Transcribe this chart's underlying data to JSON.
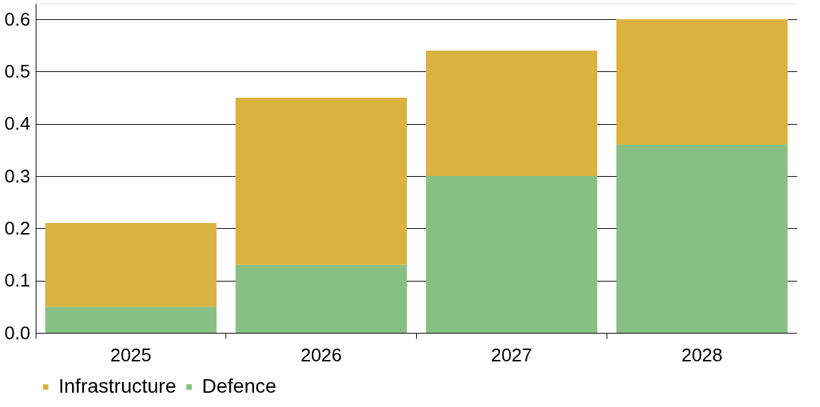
{
  "chart_data": {
    "type": "bar",
    "stacked": true,
    "categories": [
      "2025",
      "2026",
      "2027",
      "2028"
    ],
    "series": [
      {
        "name": "Defence",
        "color": "#88c084",
        "values": [
          0.05,
          0.13,
          0.3,
          0.36
        ]
      },
      {
        "name": "Infrastructure",
        "color": "#dbb240",
        "values": [
          0.16,
          0.32,
          0.24,
          0.24
        ]
      }
    ],
    "ylim": [
      0,
      0.63
    ],
    "yticks": [
      {
        "value": 0,
        "label": "0.0"
      },
      0.1,
      0.2,
      0.3,
      0.4,
      0.5,
      0.6
    ],
    "grid": "y",
    "legend": "bottom"
  }
}
